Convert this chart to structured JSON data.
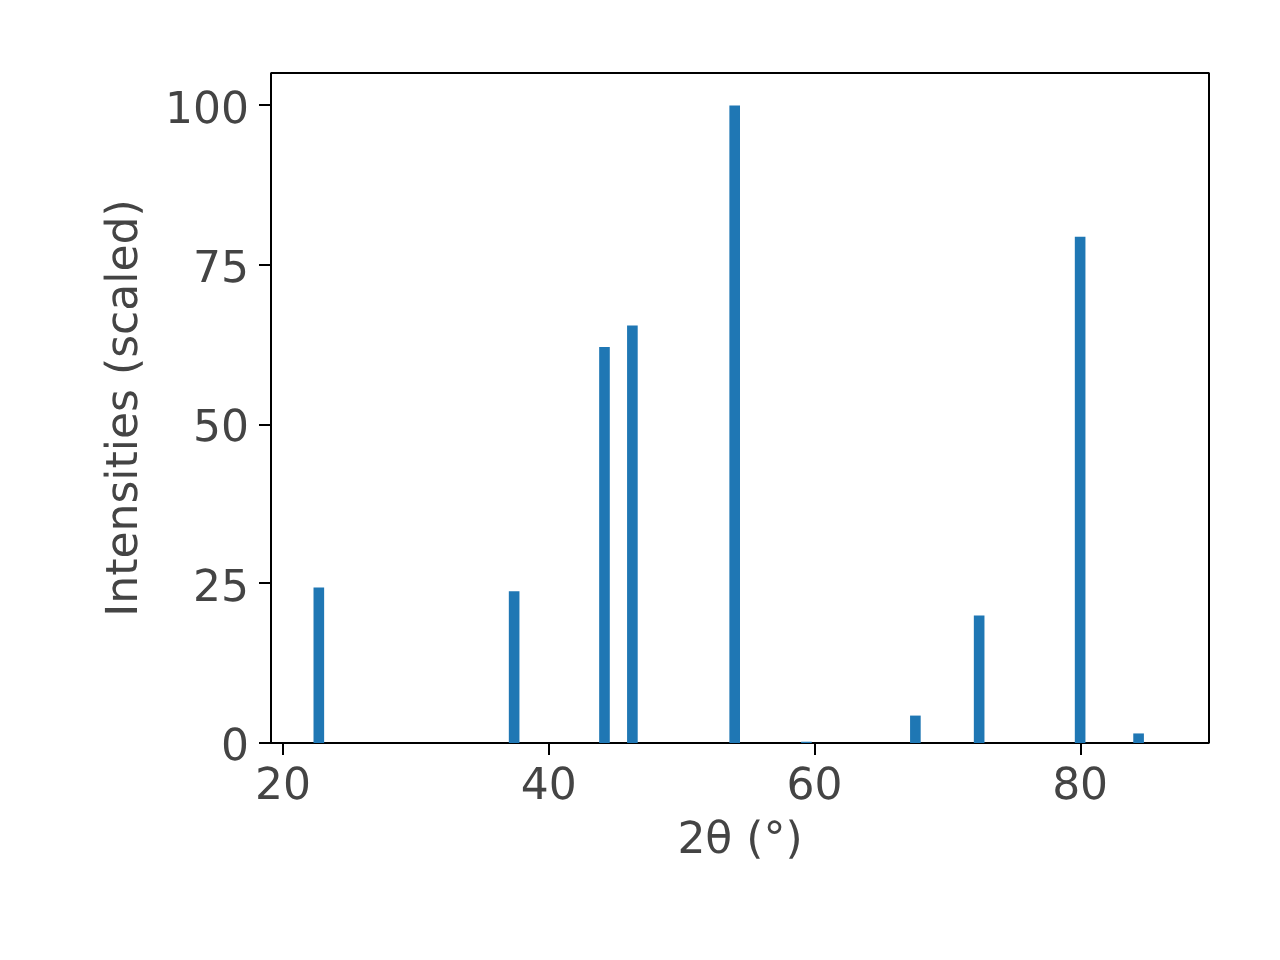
{
  "chart_data": {
    "type": "bar",
    "xlabel": "2θ (°)",
    "ylabel": "Intensities (scaled)",
    "x": [
      22.7,
      37.4,
      44.2,
      46.3,
      54.0,
      59.4,
      67.6,
      72.4,
      80.0,
      84.4
    ],
    "values": [
      24.4,
      23.8,
      62.1,
      65.5,
      100,
      0.2,
      4.3,
      20.0,
      79.4,
      1.5
    ],
    "color": "#1f77b4",
    "xlim": [
      19.1,
      89.7
    ],
    "ylim": [
      0,
      105.1
    ],
    "xticks": [
      20,
      40,
      60,
      80
    ],
    "yticks": [
      0,
      25,
      50,
      75,
      100
    ],
    "grid": false
  }
}
